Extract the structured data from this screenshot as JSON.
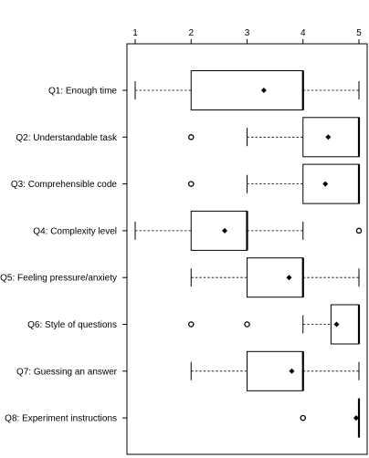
{
  "chart_data": {
    "type": "boxplot",
    "orientation": "horizontal",
    "x_axis": {
      "position": "top",
      "range": [
        1,
        5
      ],
      "ticks": [
        1,
        2,
        3,
        4,
        5
      ]
    },
    "grid": false,
    "categories": [
      "Q1: Enough time",
      "Q2: Understandable task",
      "Q3: Comprehensible code",
      "Q4: Complexity level",
      "Q5: Feeling pressure/anxiety",
      "Q6: Style of questions",
      "Q7: Guessing an answer",
      "Q8: Experiment instructions"
    ],
    "series": [
      {
        "whisker_low": 1,
        "q1": 2,
        "median": 4,
        "q3": 4,
        "whisker_high": 5,
        "mean": 3.3,
        "outliers": []
      },
      {
        "whisker_low": 3,
        "q1": 4,
        "median": 5,
        "q3": 5,
        "whisker_high": 5,
        "mean": 4.45,
        "outliers": [
          2
        ]
      },
      {
        "whisker_low": 3,
        "q1": 4,
        "median": 5,
        "q3": 5,
        "whisker_high": 5,
        "mean": 4.4,
        "outliers": [
          2
        ]
      },
      {
        "whisker_low": 1,
        "q1": 2,
        "median": 3,
        "q3": 3,
        "whisker_high": 4,
        "mean": 2.6,
        "outliers": [
          5
        ]
      },
      {
        "whisker_low": 2,
        "q1": 3,
        "median": 4,
        "q3": 4,
        "whisker_high": 5,
        "mean": 3.75,
        "outliers": []
      },
      {
        "whisker_low": 4,
        "q1": 4.5,
        "median": 5,
        "q3": 5,
        "whisker_high": 5,
        "mean": 4.6,
        "outliers": [
          2,
          3
        ]
      },
      {
        "whisker_low": 2,
        "q1": 3,
        "median": 4,
        "q3": 4,
        "whisker_high": 5,
        "mean": 3.8,
        "outliers": []
      },
      {
        "whisker_low": 5,
        "q1": 5,
        "median": 5,
        "q3": 5,
        "whisker_high": 5,
        "mean": 4.95,
        "outliers": [
          4
        ]
      }
    ],
    "colors": {
      "line": "#000000",
      "background": "#ffffff"
    }
  }
}
